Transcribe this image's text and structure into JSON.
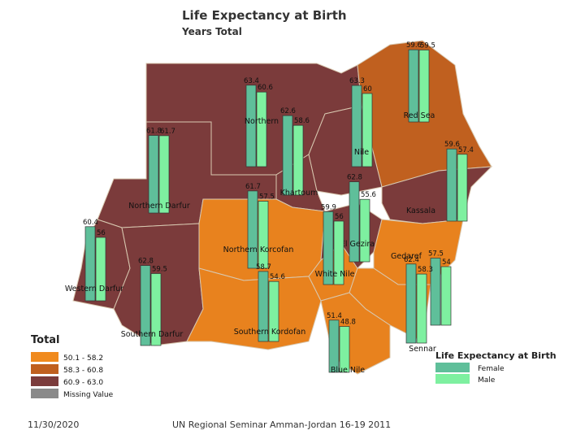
{
  "header": {
    "title": "Life Expectancy at  Birth",
    "subtitle": "Years Total"
  },
  "regions": [
    {
      "name": "Northern",
      "female": 63.4,
      "male": 60.6
    },
    {
      "name": "Red Sea",
      "female": 59.6,
      "male": 59.5
    },
    {
      "name": "Nile",
      "female": 63.3,
      "male": 60
    },
    {
      "name": "Khartoum",
      "female": 62.6,
      "male": 58.6
    },
    {
      "name": "Northern Darfur",
      "female": 61.8,
      "male": 61.7
    },
    {
      "name": "Kassala",
      "female": 59.6,
      "male": 57.4
    },
    {
      "name": "Northern Korcofan",
      "female": 61.7,
      "male": 57.5
    },
    {
      "name": "El Gezira",
      "female": 62.8,
      "male": 55.6
    },
    {
      "name": "White Nile",
      "female": 59.9,
      "male": 56.0
    },
    {
      "name": "Western Darfur",
      "female": 60.4,
      "male": 56
    },
    {
      "name": "Gedaref",
      "female": 57.5,
      "male": 54
    },
    {
      "name": "Southern Darfur",
      "female": 62.8,
      "male": 59.5
    },
    {
      "name": "Southern Kordofan",
      "female": 58.7,
      "male": 54.6
    },
    {
      "name": "Sennar",
      "female": 62.4,
      "male": 58.3
    },
    {
      "name": "Blue Nile",
      "female": 51.4,
      "male": 48.8
    }
  ],
  "legend_total": {
    "title": "Total",
    "items": [
      {
        "label": "50.1 - 58.2",
        "color": "#f08a1e"
      },
      {
        "label": "58.3 - 60.8",
        "color": "#c0601f"
      },
      {
        "label": "60.9 - 63.0",
        "color": "#7b3b3b"
      },
      {
        "label": "Missing Value",
        "color": "#8a8a8a"
      }
    ]
  },
  "legend_sex": {
    "title": "Life Expectancy at  Birth",
    "items": [
      {
        "label": "Female",
        "color": "#5fbf9a"
      },
      {
        "label": "Male",
        "color": "#7ef0a0"
      }
    ]
  },
  "footer": {
    "date": "11/30/2020",
    "text": "UN Regional Seminar  Amman-Jordan 16-19 2011"
  }
}
